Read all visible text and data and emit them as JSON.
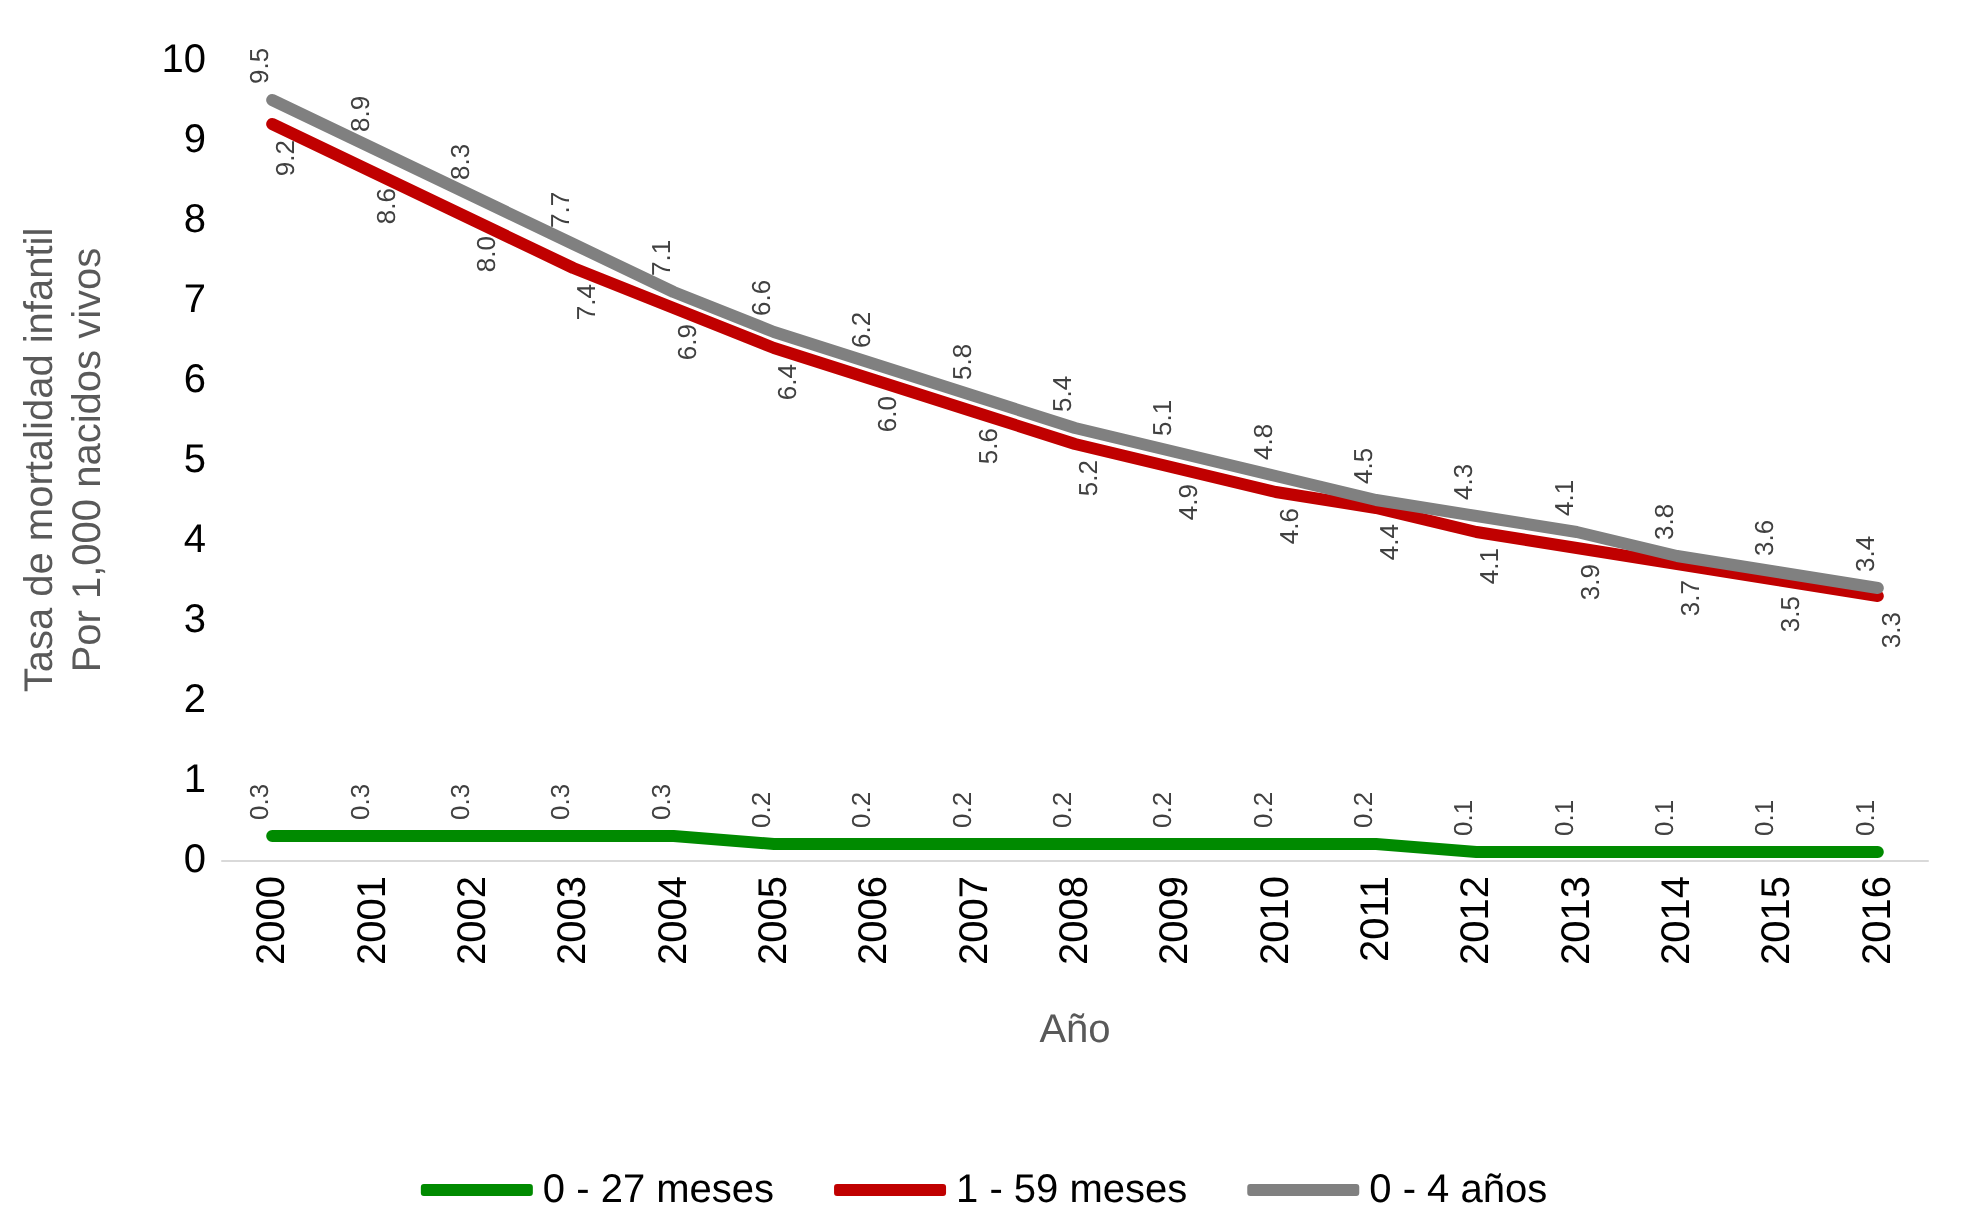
{
  "chart_data": {
    "type": "line",
    "xlabel": "Año",
    "ylabel": "Tasa de mortalidad infantil\nPor 1,000 nacidos vivos",
    "categories": [
      "2000",
      "2001",
      "2002",
      "2003",
      "2004",
      "2005",
      "2006",
      "2007",
      "2008",
      "2009",
      "2010",
      "2011",
      "2012",
      "2013",
      "2014",
      "2015",
      "2016"
    ],
    "series": [
      {
        "name": "0 - 27 meses",
        "color": "#008a00",
        "values": [
          0.3,
          0.3,
          0.3,
          0.3,
          0.3,
          0.2,
          0.2,
          0.2,
          0.2,
          0.2,
          0.2,
          0.2,
          0.1,
          0.1,
          0.1,
          0.1,
          0.1
        ],
        "value_labels": [
          "0.3",
          "0.3",
          "0.3",
          "0.3",
          "0.3",
          "0.2",
          "0.2",
          "0.2",
          "0.2",
          "0.2",
          "0.2",
          "0.2",
          "0.1",
          "0.1",
          "0.1",
          "0.1",
          "0.1"
        ]
      },
      {
        "name": "1 - 59 meses",
        "color": "#c00000",
        "values": [
          9.2,
          8.6,
          8.0,
          7.4,
          6.9,
          6.4,
          6.0,
          5.6,
          5.2,
          4.9,
          4.6,
          4.4,
          4.1,
          3.9,
          3.7,
          3.5,
          3.3
        ],
        "value_labels": [
          "9.2",
          "8.6",
          "8.0",
          "7.4",
          "6.9",
          "6.4",
          "6.0",
          "5.6",
          "5.2",
          "4.9",
          "4.6",
          "4.4",
          "4.1",
          "3.9",
          "3.7",
          "3.5",
          "3.3"
        ]
      },
      {
        "name": "0 - 4 años",
        "color": "#808080",
        "values": [
          9.5,
          8.9,
          8.3,
          7.7,
          7.1,
          6.6,
          6.2,
          5.8,
          5.4,
          5.1,
          4.8,
          4.5,
          4.3,
          4.1,
          3.8,
          3.6,
          3.4
        ],
        "value_labels": [
          "9.5",
          "8.9",
          "8.3",
          "7.7",
          "7.1",
          "6.6",
          "6.2",
          "5.8",
          "5.4",
          "5.1",
          "4.8",
          "4.5",
          "4.3",
          "4.1",
          "3.8",
          "3.6",
          "3.4"
        ]
      }
    ],
    "ylim": [
      0,
      10
    ],
    "yticks": [
      0,
      1,
      2,
      3,
      4,
      5,
      6,
      7,
      8,
      9,
      10
    ],
    "grid": false,
    "legend": "bottom",
    "marker": "none",
    "line_style": "solid"
  }
}
